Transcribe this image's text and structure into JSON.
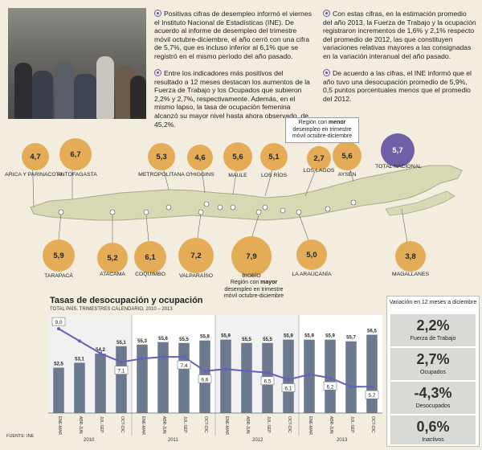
{
  "paragraphs": {
    "p1": "Positivas cifras de desempleo informó el viernes el Instituto Nacional de Estadísticas (INE). De acuerdo al informe de desempleo del trimestre móvil octubre-diciembre, el año cerró con una cifra de 5,7%, que es incluso inferior al 6,1% que se registró en el mismo período del año pasado.",
    "p2": "Entre los indicadores más positivos del resultado a 12 meses destacan los aumentos de la Fuerza de Trabajo y los Ocupados que subieron 2,2% y 2,7%, respectivamente. Además, en el mismo lapso, la tasa de ocupación femenina alcanzó su mayor nivel hasta ahora observado, de 45,2%.",
    "p3": "Con estas cifras, en la estimación promedio del año 2013, la Fuerza de Trabajo y la ocupación registraron incrementos de 1,6% y 2,1% respecto del promedio de 2012, las que constituyen variaciones relativas mayores a las consignadas en la variación interanual del año pasado.",
    "p4": "De acuerdo a las cifras, el INE informó que el año tuvo una desocupación promedio de 5,9%, 0,5 puntos porcentuales menos que el promedio del 2012."
  },
  "colors": {
    "bubble": "#e4ac57",
    "total": "#6f5fa6",
    "bar": "#6b7a8f",
    "line": "#6a5fb8",
    "map": "#d6d9b4"
  },
  "regions": [
    {
      "name": "ARICA Y PARINACOTA",
      "value": "4,7"
    },
    {
      "name": "ANTOFAGASTA",
      "value": "6,7"
    },
    {
      "name": "METROPOLITANA",
      "value": "5,3"
    },
    {
      "name": "O'HIGGINS",
      "value": "4,6"
    },
    {
      "name": "MAULE",
      "value": "5,6"
    },
    {
      "name": "LOS RÍOS",
      "value": "5,1"
    },
    {
      "name": "LOS LAGOS",
      "value": "2,7"
    },
    {
      "name": "AYSÉN",
      "value": "5,6"
    },
    {
      "name": "TOTAL NACIONAL",
      "value": "5,7"
    },
    {
      "name": "TARAPACÁ",
      "value": "5,9"
    },
    {
      "name": "ATACAMA",
      "value": "5,2"
    },
    {
      "name": "COQUIMBO",
      "value": "6,1"
    },
    {
      "name": "VALPARAÍSO",
      "value": "7,2"
    },
    {
      "name": "BIOBÍO",
      "value": "7,9"
    },
    {
      "name": "LA ARAUCANÍA",
      "value": "5,0"
    },
    {
      "name": "MAGALLANES",
      "value": "3,8"
    }
  ],
  "callouts": {
    "menor": {
      "pre": "Región con ",
      "bold": "menor",
      "post": "desempleo en trimestre móvil octubre-diciembre"
    },
    "mayor": {
      "pre": "Región con ",
      "bold": "mayor",
      "post": "desempleo en trimestre móvil octubre-diciembre"
    }
  },
  "chart_data": {
    "type": "bar",
    "title": "Tasas de desocupación y ocupación",
    "subtitle": "TOTAL PAÍS. TRIMESTRES CALENDARIO, 2010 – 2013",
    "categories": [
      "ENE-MAR",
      "ABR-JUN",
      "JUL-SEP",
      "OCT-DIC",
      "ENE-MAR",
      "ABR-JUN",
      "JUL-SEP",
      "OCT-DIC",
      "ENE-MAR",
      "ABR-JUN",
      "JUL-SEP",
      "OCT-DIC",
      "ENE-MAR",
      "ABR-JUN",
      "JUL-SEP",
      "OCT-DIC"
    ],
    "years": [
      "2010",
      "2011",
      "2012",
      "2013"
    ],
    "series": [
      {
        "type": "bar",
        "values": [
          52.5,
          53.1,
          54.2,
          55.1,
          55.3,
          55.6,
          55.5,
          55.8,
          55.9,
          55.5,
          55.5,
          55.9,
          55.9,
          55.9,
          55.7,
          56.5
        ]
      },
      {
        "type": "line",
        "values": [
          9.0,
          8.3,
          7.6,
          7.1,
          7.3,
          7.4,
          7.4,
          6.6,
          6.7,
          6.6,
          6.5,
          6.1,
          6.4,
          6.2,
          5.7,
          5.7
        ]
      }
    ],
    "bar_labels": [
      "52,5",
      "53,1",
      "54,2",
      "55,1",
      "55,3",
      "55,6",
      "55,5",
      "55,8",
      "55,9",
      "55,5",
      "55,5",
      "55,9",
      "55,9",
      "55,9",
      "55,7",
      "56,5"
    ],
    "line_labels": [
      {
        "i": 0,
        "t": "9,0"
      },
      {
        "i": 3,
        "t": "7,1"
      },
      {
        "i": 6,
        "t": "7,4"
      },
      {
        "i": 7,
        "t": "6,6"
      },
      {
        "i": 10,
        "t": "6,5"
      },
      {
        "i": 11,
        "t": "6,1"
      },
      {
        "i": 13,
        "t": "6,2"
      },
      {
        "i": 15,
        "t": "5,7"
      }
    ],
    "source": "FUENTE: INE"
  },
  "variation": {
    "header": "Variación en 12 meses a diciembre",
    "items": [
      {
        "value": "2,2%",
        "label": "Fuerza de Trabajo"
      },
      {
        "value": "2,7%",
        "label": "Ocupados"
      },
      {
        "value": "-4,3%",
        "label": "Desocupados"
      },
      {
        "value": "0,6%",
        "label": "Inactivos"
      }
    ]
  }
}
